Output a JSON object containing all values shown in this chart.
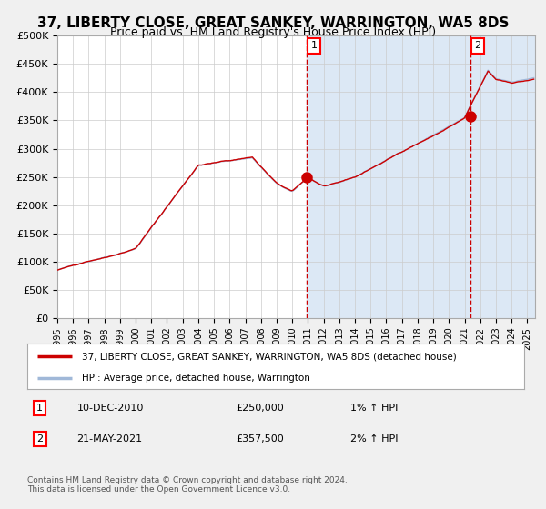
{
  "title": "37, LIBERTY CLOSE, GREAT SANKEY, WARRINGTON, WA5 8DS",
  "subtitle": "Price paid vs. HM Land Registry's House Price Index (HPI)",
  "title_fontsize": 11,
  "subtitle_fontsize": 9,
  "ylabel_ticks": [
    "£0",
    "£50K",
    "£100K",
    "£150K",
    "£200K",
    "£250K",
    "£300K",
    "£350K",
    "£400K",
    "£450K",
    "£500K"
  ],
  "ylim": [
    0,
    500000
  ],
  "xlim_start": 1995.0,
  "xlim_end": 2025.5,
  "plot_bg_color": "#ffffff",
  "grid_color": "#cccccc",
  "hpi_line_color": "#a0b8d8",
  "price_line_color": "#cc0000",
  "shade_start": 2010.92,
  "shade_color": "#dce8f5",
  "purchase1_x": 2010.92,
  "purchase1_y": 250000,
  "purchase2_x": 2021.38,
  "purchase2_y": 357500,
  "annotation1": "1",
  "annotation2": "2",
  "legend_line1": "37, LIBERTY CLOSE, GREAT SANKEY, WARRINGTON, WA5 8DS (detached house)",
  "legend_line2": "HPI: Average price, detached house, Warrington",
  "note1_label": "1",
  "note1_date": "10-DEC-2010",
  "note1_price": "£250,000",
  "note1_hpi": "1% ↑ HPI",
  "note2_label": "2",
  "note2_date": "21-MAY-2021",
  "note2_price": "£357,500",
  "note2_hpi": "2% ↑ HPI",
  "footer": "Contains HM Land Registry data © Crown copyright and database right 2024.\nThis data is licensed under the Open Government Licence v3.0.",
  "xticks": [
    1995,
    1996,
    1997,
    1998,
    1999,
    2000,
    2001,
    2002,
    2003,
    2004,
    2005,
    2006,
    2007,
    2008,
    2009,
    2010,
    2011,
    2012,
    2013,
    2014,
    2015,
    2016,
    2017,
    2018,
    2019,
    2020,
    2021,
    2022,
    2023,
    2024,
    2025
  ]
}
